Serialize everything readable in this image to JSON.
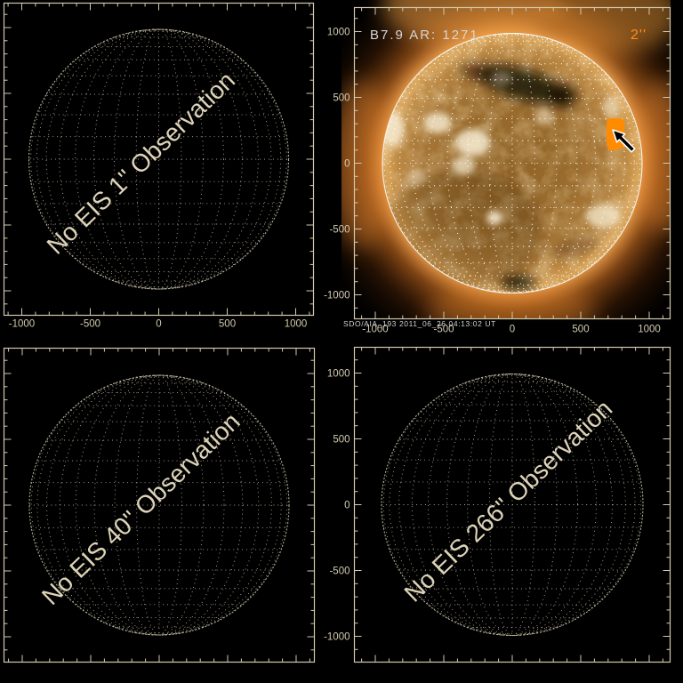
{
  "window": {
    "background": "#000000"
  },
  "colors": {
    "axis": "#d2c9ae",
    "watermark": "#ddd3b8",
    "grid_dots_cream": "#cfc7ad",
    "grid_dots_white": "#ffffff",
    "fov_orange": "#ff8c00",
    "slit_orange": "#ff8c1a",
    "flare_label_gray": "#d6d6d6",
    "credit_gray": "#cfcfcf"
  },
  "axes": {
    "x_tick_labels": [
      "-1000",
      "-500",
      "0",
      "500",
      "1000"
    ],
    "y_tick_labels": [
      "1000",
      "500",
      "0",
      "-500",
      "-1000"
    ]
  },
  "panels": [
    {
      "id": "eis-1",
      "watermark": "No EIS 1\" Observation"
    },
    {
      "id": "aia-193",
      "flare_label": "B7.9 AR: 1271",
      "slit_label": "2''",
      "credit": "SDO/AIA_193  2011_06_26  04:13:02 UT",
      "marker": "eis-fov-box"
    },
    {
      "id": "eis-40",
      "watermark": "No EIS 40\" Observation"
    },
    {
      "id": "eis-266",
      "watermark": "No EIS 266\" Observation"
    }
  ]
}
